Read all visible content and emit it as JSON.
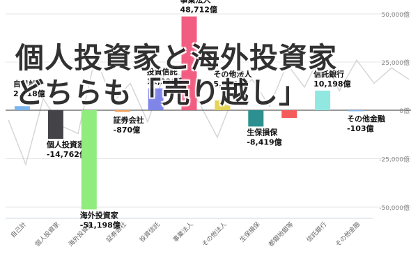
{
  "headline": {
    "line1": "個人投資家と海外投資家",
    "line2": "どちらも「売り越し」"
  },
  "colors": {
    "background_line": "#cccccc",
    "grid": "#e6e6e6",
    "baseline": "#333333"
  },
  "chart_data": {
    "type": "bar",
    "categories": [
      "自己計",
      "個人投資家",
      "海外投資家",
      "証券会社",
      "投資信託",
      "事業法人",
      "その他法人",
      "生保損保",
      "都銀地銀等",
      "信託銀行",
      "その他金融"
    ],
    "values": [
      2118,
      -14762,
      -51198,
      -870,
      11328,
      48712,
      5086,
      -8419,
      -4000,
      10198,
      -103
    ],
    "labels": [
      {
        "name": "自己計",
        "value": "2,118億"
      },
      {
        "name": "個人投資家",
        "value": "-14,762億"
      },
      {
        "name": "海外投資家",
        "value": "-51,198億"
      },
      {
        "name": "証券会社",
        "value": "-870億"
      },
      {
        "name": "投資信託",
        "value": "11,328億"
      },
      {
        "name": "事業法人",
        "value": "48,712億"
      },
      {
        "name": "その他法人",
        "value": "5,086億"
      },
      {
        "name": "生保損保",
        "value": "-8,419億"
      },
      {
        "name": "",
        "value": ""
      },
      {
        "name": "信託銀行",
        "value": "10,198億"
      },
      {
        "name": "その他金融",
        "value": "-103億"
      }
    ],
    "bar_colors": [
      "#7cb5ec",
      "#434348",
      "#90ed7d",
      "#f7a35c",
      "#8085e9",
      "#f15c80",
      "#e4d354",
      "#2b908f",
      "#f45b5b",
      "#91e8e1",
      "#7cb5ec"
    ],
    "yticks": [
      "50,000億",
      "25,000億",
      "0億",
      "-25,000億",
      "-50,000億"
    ],
    "ytick_values": [
      50000,
      25000,
      0,
      -25000,
      -50000
    ],
    "ylim": [
      -52000,
      50000
    ],
    "grid": true,
    "background_line_series": [
      -5000,
      -28000,
      6000,
      -8000,
      -12000,
      28000,
      4000,
      14000,
      -6000,
      20000,
      18000,
      3000,
      -14000,
      9000,
      16000,
      2000,
      24000,
      12000,
      30000,
      10000,
      26000,
      14000,
      22000,
      16000
    ]
  }
}
